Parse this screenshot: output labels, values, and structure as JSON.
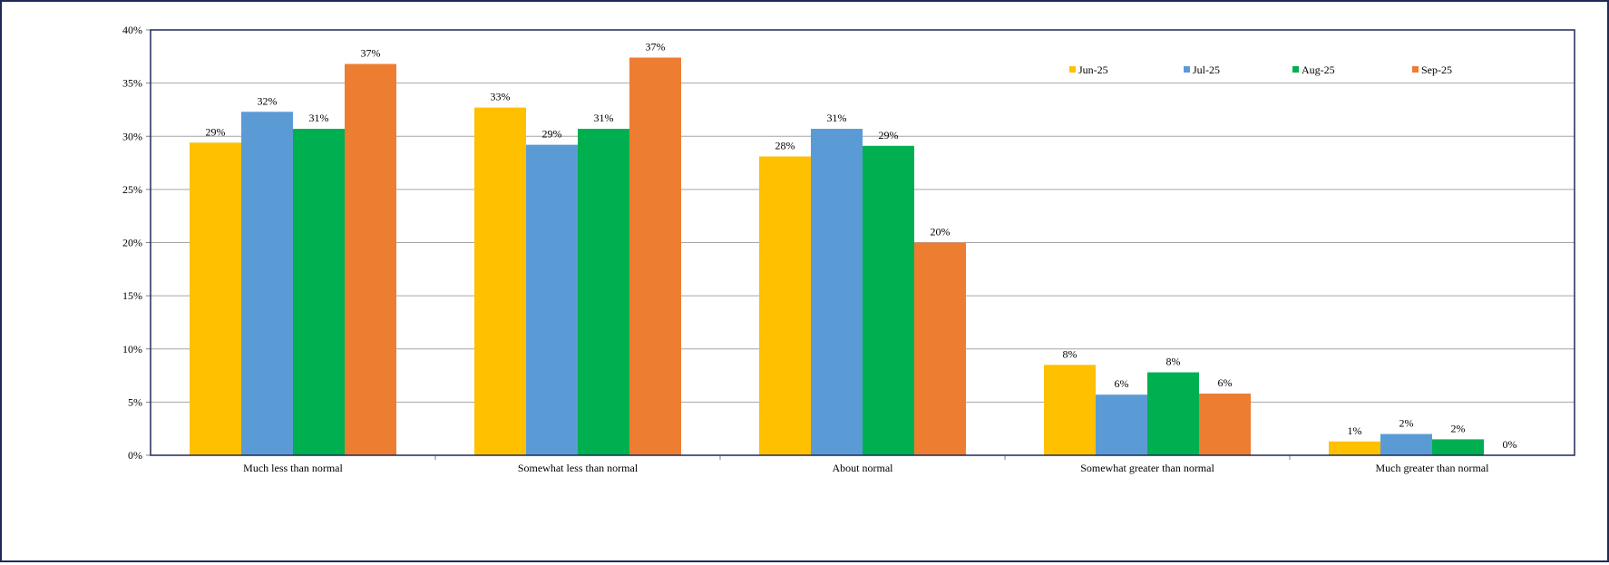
{
  "chart_data": {
    "type": "bar",
    "title": "",
    "xlabel": "",
    "ylabel": "",
    "categories": [
      "Much less than normal",
      "Somewhat less than normal",
      "About normal",
      "Somewhat greater than normal",
      "Much greater than normal"
    ],
    "series": [
      {
        "name": "Jun-25",
        "color": "#ffc000",
        "values": [
          29.4,
          32.7,
          28.1,
          8.5,
          1.3
        ],
        "labels": [
          "29%",
          "33%",
          "28%",
          "8%",
          "1%"
        ]
      },
      {
        "name": "Jul-25",
        "color": "#5b9bd5",
        "values": [
          32.3,
          29.2,
          30.7,
          5.7,
          2.0
        ],
        "labels": [
          "32%",
          "29%",
          "31%",
          "6%",
          "2%"
        ]
      },
      {
        "name": "Aug-25",
        "color": "#00b050",
        "values": [
          30.7,
          30.7,
          29.1,
          7.8,
          1.5
        ],
        "labels": [
          "31%",
          "31%",
          "29%",
          "8%",
          "2%"
        ]
      },
      {
        "name": "Sep-25",
        "color": "#ed7d31",
        "values": [
          36.8,
          37.4,
          20.0,
          5.8,
          0.0
        ],
        "labels": [
          "37%",
          "37%",
          "20%",
          "6%",
          "0%"
        ]
      }
    ],
    "ylim": [
      0,
      40
    ],
    "y_ticks": [
      0,
      5,
      10,
      15,
      20,
      25,
      30,
      35,
      40
    ],
    "y_tick_labels": [
      "0%",
      "5%",
      "10%",
      "15%",
      "20%",
      "25%",
      "30%",
      "35%",
      "40%"
    ],
    "grid": true,
    "legend_position": "top-right"
  }
}
